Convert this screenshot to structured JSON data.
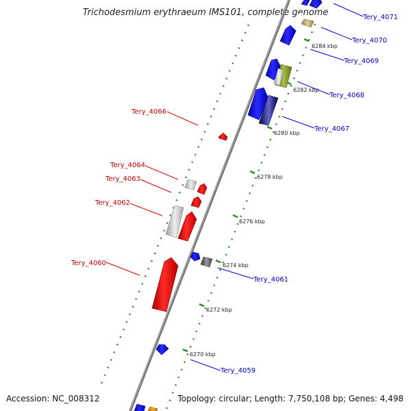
{
  "title": "Trichodesmium erythraeum IMS101, complete genome",
  "footer": {
    "accession": "Accession: NC_008312",
    "topology": "Topology: circular; Length: 7,750,108 bp; Genes: 4,498"
  },
  "colors": {
    "backbone": "#777777",
    "tick_dot": "#2a8a2a",
    "forward_gene": "#0000ee",
    "reverse_gene": "#ee0000",
    "forward_label": "#0000cc",
    "reverse_label": "#cc0000"
  },
  "ticks": [
    {
      "label": "6270 kbp"
    },
    {
      "label": "6272 kbp"
    },
    {
      "label": "6274 kbp"
    },
    {
      "label": "6276 kbp"
    },
    {
      "label": "6278 kbp"
    },
    {
      "label": "6280 kbp"
    },
    {
      "label": "6282 kbp"
    },
    {
      "label": "6284 kbp"
    }
  ],
  "forward_labels": [
    {
      "name": "Tery_4059"
    },
    {
      "name": "Tery_4061"
    },
    {
      "name": "Tery_4067"
    },
    {
      "name": "Tery_4068"
    },
    {
      "name": "Tery_4069"
    },
    {
      "name": "Tery_4070"
    },
    {
      "name": "Tery_4071"
    }
  ],
  "reverse_labels": [
    {
      "name": "Tery_4060"
    },
    {
      "name": "Tery_4062"
    },
    {
      "name": "Tery_4063"
    },
    {
      "name": "Tery_4064"
    },
    {
      "name": "Tery_4066"
    }
  ]
}
